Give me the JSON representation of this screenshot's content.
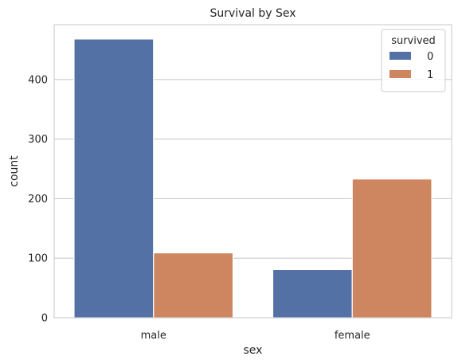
{
  "chart_data": {
    "type": "bar",
    "title": "Survival by Sex",
    "xlabel": "sex",
    "ylabel": "count",
    "categories": [
      "male",
      "female"
    ],
    "series": [
      {
        "name": "0",
        "color": "#5471a5",
        "values": [
          468,
          81
        ]
      },
      {
        "name": "1",
        "color": "#cd865f",
        "values": [
          109,
          233
        ]
      }
    ],
    "ylim": [
      0,
      492
    ],
    "yticks": [
      0,
      100,
      200,
      300,
      400
    ],
    "grid": "horizontal",
    "legend": {
      "title": "survived",
      "position": "top-right"
    }
  }
}
